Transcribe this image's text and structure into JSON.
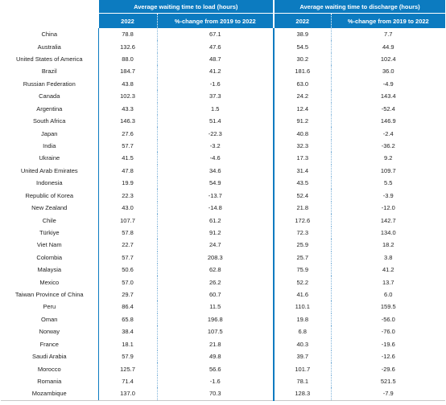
{
  "header": {
    "group_load": "Average waiting time to load (hours)",
    "group_discharge": "Average waiting time to discharge (hours)",
    "col_year": "2022",
    "col_pct": "%-change from 2019 to 2022"
  },
  "rows": [
    {
      "country": "China",
      "load_2022": "78.8",
      "load_pct": "67.1",
      "dis_2022": "38.9",
      "dis_pct": "7.7"
    },
    {
      "country": "Australia",
      "load_2022": "132.6",
      "load_pct": "47.6",
      "dis_2022": "54.5",
      "dis_pct": "44.9"
    },
    {
      "country": "United States of America",
      "load_2022": "88.0",
      "load_pct": "48.7",
      "dis_2022": "30.2",
      "dis_pct": "102.4"
    },
    {
      "country": "Brazil",
      "load_2022": "184.7",
      "load_pct": "41.2",
      "dis_2022": "181.6",
      "dis_pct": "36.0"
    },
    {
      "country": "Russian Federation",
      "load_2022": "43.8",
      "load_pct": "-1.6",
      "dis_2022": "63.0",
      "dis_pct": "-4.9"
    },
    {
      "country": "Canada",
      "load_2022": "102.3",
      "load_pct": "37.3",
      "dis_2022": "24.2",
      "dis_pct": "143.4"
    },
    {
      "country": "Argentina",
      "load_2022": "43.3",
      "load_pct": "1.5",
      "dis_2022": "12.4",
      "dis_pct": "-52.4"
    },
    {
      "country": "South Africa",
      "load_2022": "146.3",
      "load_pct": "51.4",
      "dis_2022": "91.2",
      "dis_pct": "146.9"
    },
    {
      "country": "Japan",
      "load_2022": "27.6",
      "load_pct": "-22.3",
      "dis_2022": "40.8",
      "dis_pct": "-2.4"
    },
    {
      "country": "India",
      "load_2022": "57.7",
      "load_pct": "-3.2",
      "dis_2022": "32.3",
      "dis_pct": "-36.2"
    },
    {
      "country": "Ukraine",
      "load_2022": "41.5",
      "load_pct": "-4.6",
      "dis_2022": "17.3",
      "dis_pct": "9.2"
    },
    {
      "country": "United Arab Emirates",
      "load_2022": "47.8",
      "load_pct": "34.6",
      "dis_2022": "31.4",
      "dis_pct": "109.7"
    },
    {
      "country": "Indonesia",
      "load_2022": "19.9",
      "load_pct": "54.9",
      "dis_2022": "43.5",
      "dis_pct": "5.5"
    },
    {
      "country": "Republic of Korea",
      "load_2022": "22.3",
      "load_pct": "-13.7",
      "dis_2022": "52.4",
      "dis_pct": "-3.9"
    },
    {
      "country": "New Zealand",
      "load_2022": "43.0",
      "load_pct": "-14.8",
      "dis_2022": "21.8",
      "dis_pct": "-12.0"
    },
    {
      "country": "Chile",
      "load_2022": "107.7",
      "load_pct": "61.2",
      "dis_2022": "172.6",
      "dis_pct": "142.7"
    },
    {
      "country": "Türkiye",
      "load_2022": "57.8",
      "load_pct": "91.2",
      "dis_2022": "72.3",
      "dis_pct": "134.0"
    },
    {
      "country": "Viet Nam",
      "load_2022": "22.7",
      "load_pct": "24.7",
      "dis_2022": "25.9",
      "dis_pct": "18.2"
    },
    {
      "country": "Colombia",
      "load_2022": "57.7",
      "load_pct": "208.3",
      "dis_2022": "25.7",
      "dis_pct": "3.8"
    },
    {
      "country": "Malaysia",
      "load_2022": "50.6",
      "load_pct": "62.8",
      "dis_2022": "75.9",
      "dis_pct": "41.2"
    },
    {
      "country": "Mexico",
      "load_2022": "57.0",
      "load_pct": "26.2",
      "dis_2022": "52.2",
      "dis_pct": "13.7"
    },
    {
      "country": "Taiwan Province of China",
      "load_2022": "29.7",
      "load_pct": "60.7",
      "dis_2022": "41.6",
      "dis_pct": "6.0"
    },
    {
      "country": "Peru",
      "load_2022": "86.4",
      "load_pct": "11.5",
      "dis_2022": "110.1",
      "dis_pct": "159.5"
    },
    {
      "country": "Oman",
      "load_2022": "65.8",
      "load_pct": "196.8",
      "dis_2022": "19.8",
      "dis_pct": "-56.0"
    },
    {
      "country": "Norway",
      "load_2022": "38.4",
      "load_pct": "107.5",
      "dis_2022": "6.8",
      "dis_pct": "-76.0"
    },
    {
      "country": "France",
      "load_2022": "18.1",
      "load_pct": "21.8",
      "dis_2022": "40.3",
      "dis_pct": "-19.6"
    },
    {
      "country": "Saudi Arabia",
      "load_2022": "57.9",
      "load_pct": "49.8",
      "dis_2022": "39.7",
      "dis_pct": "-12.6"
    },
    {
      "country": "Morocco",
      "load_2022": "125.7",
      "load_pct": "56.6",
      "dis_2022": "101.7",
      "dis_pct": "-29.6"
    },
    {
      "country": "Romania",
      "load_2022": "71.4",
      "load_pct": "-1.6",
      "dis_2022": "78.1",
      "dis_pct": "521.5"
    },
    {
      "country": "Mozambique",
      "load_2022": "137.0",
      "load_pct": "70.3",
      "dis_2022": "128.3",
      "dis_pct": "-7.9"
    }
  ]
}
